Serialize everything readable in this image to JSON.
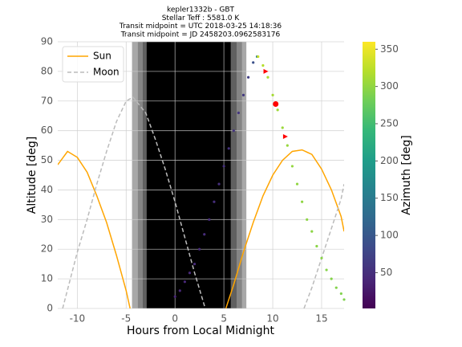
{
  "chart_data": {
    "type": "line",
    "title": [
      "kepler1332b -  GBT",
      "Stellar Teff : 5581.0 K",
      "Transit midpoint = UTC 2018-03-25 14:18:36",
      "Transit midpoint = JD 2458203.0962583176"
    ],
    "x_label": "Hours from Local Midnight",
    "y_label": "Altitude [deg]",
    "xlim": [
      -12,
      17.3
    ],
    "ylim": [
      0,
      90
    ],
    "xticks": [
      -10,
      -5,
      0,
      5,
      10,
      15
    ],
    "yticks": [
      0,
      10,
      20,
      30,
      40,
      50,
      60,
      70,
      80,
      90
    ],
    "grid": true,
    "legend": "upper left",
    "night_bands": [
      {
        "start": -4.4,
        "end": 7.3,
        "color": "#a8a8a8"
      },
      {
        "start": -3.8,
        "end": 6.85,
        "color": "#858585"
      },
      {
        "start": -3.3,
        "end": 6.3,
        "color": "#606060"
      },
      {
        "start": -2.9,
        "end": 5.7,
        "color": "#000000"
      }
    ],
    "series": [
      {
        "name": "Sun",
        "type": "line",
        "color": "#ffa500",
        "dashed": false,
        "x": [
          -12,
          -11,
          -10,
          -9,
          -8,
          -7,
          -6,
          -5,
          -4.6,
          null,
          5.2,
          6,
          7,
          8,
          9,
          10,
          11,
          12,
          13,
          14,
          15,
          16,
          17,
          17.3
        ],
        "values": [
          48.5,
          53,
          51,
          46,
          38,
          29,
          18,
          6,
          0,
          null,
          0,
          8,
          19,
          29,
          38,
          45,
          50,
          53,
          53.5,
          52,
          47,
          40,
          31,
          26
        ]
      },
      {
        "name": "Moon",
        "type": "line",
        "color": "#bbbbbb",
        "dashed": true,
        "x": [
          -11.5,
          -10,
          -9,
          -8,
          -7,
          -6,
          -5,
          -4.3,
          -3,
          -2,
          -1,
          0,
          1,
          2,
          3,
          3.1,
          null,
          13.2,
          14,
          15,
          16,
          17,
          17.3
        ],
        "values": [
          0,
          19,
          30,
          42,
          53,
          63,
          70,
          71.3,
          66,
          57,
          47,
          36,
          24,
          12,
          1,
          0,
          null,
          0,
          7,
          17,
          27,
          37,
          42
        ]
      },
      {
        "type": "scatter",
        "x": [
          0,
          0.5,
          1,
          1.5,
          2,
          2.5,
          3,
          3.5,
          4,
          4.5,
          5,
          5.5,
          6,
          6.5,
          7,
          7.5,
          8,
          8.4,
          8.5,
          9,
          9.5,
          10,
          10.5,
          11,
          11.5,
          12,
          12.5,
          13,
          13.5,
          14,
          14.5,
          15,
          15.5,
          16,
          16.5,
          17,
          17.3
        ],
        "values": [
          4,
          6,
          9,
          12,
          15,
          20,
          25,
          30,
          36,
          42,
          48,
          54,
          60,
          66,
          72,
          78,
          83,
          85,
          85,
          82,
          78,
          72,
          67,
          61,
          55,
          48,
          42,
          36,
          30,
          26,
          21,
          17,
          13,
          10,
          7,
          5,
          3
        ],
        "azimuth": [
          40,
          41,
          42,
          43,
          44,
          45,
          46,
          47,
          48,
          50,
          52,
          54,
          56,
          59,
          63,
          70,
          90,
          150,
          330,
          320,
          315,
          311,
          308,
          306,
          304,
          302,
          300,
          299,
          298,
          297,
          296,
          295,
          294,
          293,
          292,
          291,
          290
        ]
      },
      {
        "type": "markers",
        "color": "#ff0000",
        "markers": [
          "triangle",
          "circle",
          "triangle"
        ],
        "x": [
          9.3,
          10.3,
          11.3
        ],
        "values": [
          80,
          69,
          58
        ]
      }
    ],
    "colorbar": {
      "label": "Azimuth [deg]",
      "lim": [
        2,
        360
      ],
      "ticks": [
        50,
        100,
        150,
        200,
        250,
        300,
        350
      ],
      "colormap": [
        "#440154",
        "#482878",
        "#3e4989",
        "#31688e",
        "#26828e",
        "#1f9e89",
        "#35b779",
        "#6ece58",
        "#b5de2b",
        "#fde725"
      ]
    }
  }
}
